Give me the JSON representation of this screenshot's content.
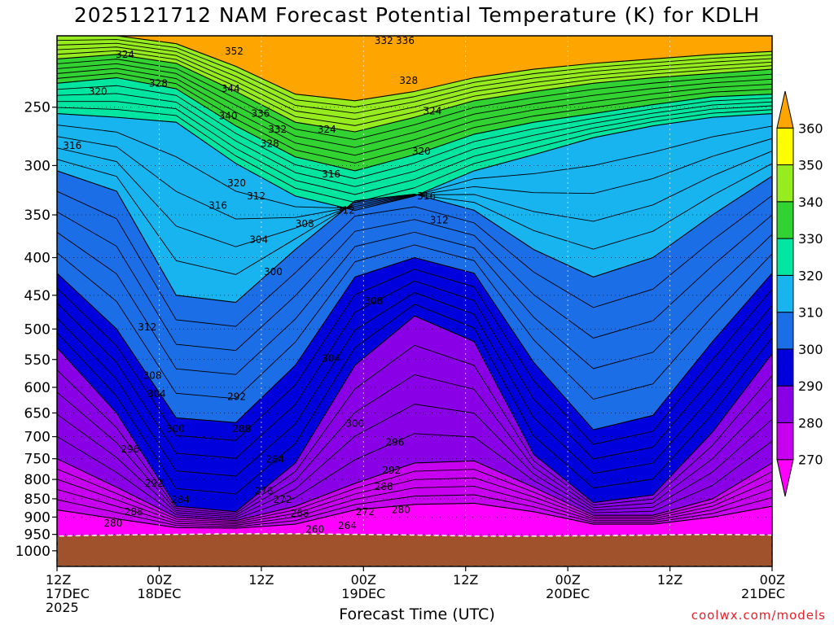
{
  "title": "2025121712 NAM Forecast Potential Temperature (K) for KDLH",
  "xlabel": "Forecast Time (UTC)",
  "credit": "coolwx.com/models",
  "chart_data": {
    "type": "contour",
    "grid": true,
    "x_axis": {
      "range_hours": [
        0,
        84
      ],
      "ticks": [
        {
          "hour": 0,
          "line1": "12Z",
          "line2": "17DEC",
          "line3": "2025"
        },
        {
          "hour": 12,
          "line1": "00Z",
          "line2": "18DEC",
          "line3": ""
        },
        {
          "hour": 24,
          "line1": "12Z",
          "line2": "",
          "line3": ""
        },
        {
          "hour": 36,
          "line1": "00Z",
          "line2": "19DEC",
          "line3": ""
        },
        {
          "hour": 48,
          "line1": "12Z",
          "line2": "",
          "line3": ""
        },
        {
          "hour": 60,
          "line1": "00Z",
          "line2": "20DEC",
          "line3": ""
        },
        {
          "hour": 72,
          "line1": "12Z",
          "line2": "",
          "line3": ""
        },
        {
          "hour": 84,
          "line1": "00Z",
          "line2": "21DEC",
          "line3": ""
        }
      ]
    },
    "y_axis": {
      "scale": "log",
      "reversed": true,
      "range_hpa": [
        200,
        1050
      ],
      "ticks": [
        250,
        300,
        350,
        400,
        450,
        500,
        550,
        600,
        650,
        700,
        750,
        800,
        850,
        900,
        950,
        1000
      ]
    },
    "colorbar": {
      "levels": [
        270,
        280,
        290,
        300,
        310,
        320,
        330,
        340,
        350,
        360
      ],
      "bands": [
        {
          "from": 260,
          "to": 270,
          "color": "#ff00ff"
        },
        {
          "from": 270,
          "to": 280,
          "color": "#c800f0"
        },
        {
          "from": 280,
          "to": 290,
          "color": "#8a00e6"
        },
        {
          "from": 290,
          "to": 300,
          "color": "#0000dc"
        },
        {
          "from": 300,
          "to": 310,
          "color": "#1c6ee6"
        },
        {
          "from": 310,
          "to": 320,
          "color": "#18b4f0"
        },
        {
          "from": 320,
          "to": 330,
          "color": "#00e6a0"
        },
        {
          "from": 330,
          "to": 340,
          "color": "#32d232"
        },
        {
          "from": 340,
          "to": 350,
          "color": "#96ec1e"
        },
        {
          "from": 350,
          "to": 360,
          "color": "#ffff00"
        },
        {
          "from": 360,
          "to": 370,
          "color": "#ffa500"
        }
      ],
      "ground_color": "#a0522d"
    },
    "surface_pressure_hpa": [
      955,
      952,
      950,
      948,
      948,
      950,
      952,
      955,
      955,
      954,
      952,
      950,
      952
    ],
    "isentropes": [
      {
        "theta": 350,
        "p": [
          200,
          200,
          205,
          220,
          240,
          245,
          238,
          228,
          222,
          218,
          215,
          212,
          210
        ]
      },
      {
        "theta": 340,
        "p": [
          215,
          212,
          218,
          238,
          262,
          270,
          258,
          245,
          238,
          232,
          228,
          225,
          222
        ]
      },
      {
        "theta": 330,
        "p": [
          232,
          228,
          236,
          265,
          292,
          305,
          290,
          272,
          262,
          255,
          248,
          242,
          240
        ]
      },
      {
        "theta": 320,
        "p": [
          255,
          258,
          262,
          298,
          330,
          345,
          330,
          305,
          290,
          275,
          265,
          258,
          255
        ]
      },
      {
        "theta": 310,
        "p": [
          305,
          325,
          450,
          460,
          390,
          335,
          328,
          345,
          390,
          425,
          400,
          350,
          310
        ]
      },
      {
        "theta": 300,
        "p": [
          420,
          500,
          660,
          670,
          560,
          425,
          400,
          420,
          555,
          685,
          655,
          520,
          420
        ]
      },
      {
        "theta": 290,
        "p": [
          530,
          650,
          870,
          885,
          760,
          560,
          480,
          520,
          740,
          860,
          840,
          690,
          540
        ]
      },
      {
        "theta": 280,
        "p": [
          750,
          820,
          900,
          910,
          870,
          810,
          760,
          755,
          820,
          895,
          895,
          850,
          760
        ]
      },
      {
        "theta": 270,
        "p": [
          880,
          905,
          930,
          932,
          920,
          880,
          865,
          862,
          885,
          920,
          920,
          900,
          870
        ]
      }
    ],
    "profile_hours": [
      0,
      7,
      14,
      21,
      28,
      35,
      42,
      49,
      56,
      63,
      70,
      77,
      84
    ],
    "contour_labels": [
      {
        "text": "324",
        "hour": 8,
        "p": 212
      },
      {
        "text": "328",
        "hour": 11.9,
        "p": 232
      },
      {
        "text": "320",
        "hour": 4.8,
        "p": 238
      },
      {
        "text": "316",
        "hour": 1.8,
        "p": 282
      },
      {
        "text": "352",
        "hour": 20.8,
        "p": 210
      },
      {
        "text": "344",
        "hour": 20.4,
        "p": 236
      },
      {
        "text": "340",
        "hour": 20.1,
        "p": 257
      },
      {
        "text": "336",
        "hour": 23.9,
        "p": 255
      },
      {
        "text": "332",
        "hour": 25.9,
        "p": 268
      },
      {
        "text": "328",
        "hour": 25.0,
        "p": 280
      },
      {
        "text": "324",
        "hour": 31.7,
        "p": 268
      },
      {
        "text": "332",
        "hour": 38.4,
        "p": 203
      },
      {
        "text": "336",
        "hour": 40.9,
        "p": 203
      },
      {
        "text": "328",
        "hour": 41.3,
        "p": 230
      },
      {
        "text": "324",
        "hour": 44.1,
        "p": 253
      },
      {
        "text": "320",
        "hour": 42.8,
        "p": 287
      },
      {
        "text": "316",
        "hour": 32.2,
        "p": 308
      },
      {
        "text": "320",
        "hour": 21.1,
        "p": 317
      },
      {
        "text": "316",
        "hour": 18.9,
        "p": 340
      },
      {
        "text": "312",
        "hour": 23.4,
        "p": 330
      },
      {
        "text": "312",
        "hour": 33.9,
        "p": 345
      },
      {
        "text": "308",
        "hour": 29.1,
        "p": 360
      },
      {
        "text": "304",
        "hour": 23.7,
        "p": 378
      },
      {
        "text": "316",
        "hour": 43.4,
        "p": 330
      },
      {
        "text": "312",
        "hour": 44.9,
        "p": 356
      },
      {
        "text": "300",
        "hour": 25.4,
        "p": 418
      },
      {
        "text": "312",
        "hour": 10.6,
        "p": 497
      },
      {
        "text": "308",
        "hour": 11.2,
        "p": 578
      },
      {
        "text": "304",
        "hour": 11.7,
        "p": 612
      },
      {
        "text": "300",
        "hour": 13.9,
        "p": 683
      },
      {
        "text": "296",
        "hour": 8.6,
        "p": 728
      },
      {
        "text": "292",
        "hour": 11.4,
        "p": 810
      },
      {
        "text": "288",
        "hour": 9.0,
        "p": 885
      },
      {
        "text": "280",
        "hour": 6.6,
        "p": 918
      },
      {
        "text": "284",
        "hour": 14.5,
        "p": 852
      },
      {
        "text": "292",
        "hour": 21.1,
        "p": 618
      },
      {
        "text": "288",
        "hour": 21.7,
        "p": 683
      },
      {
        "text": "284",
        "hour": 25.6,
        "p": 752
      },
      {
        "text": "276",
        "hour": 24.3,
        "p": 830
      },
      {
        "text": "272",
        "hour": 26.5,
        "p": 852
      },
      {
        "text": "268",
        "hour": 28.5,
        "p": 890
      },
      {
        "text": "260",
        "hour": 30.3,
        "p": 935
      },
      {
        "text": "264",
        "hour": 34.1,
        "p": 925
      },
      {
        "text": "308",
        "hour": 37.2,
        "p": 458
      },
      {
        "text": "304",
        "hour": 32.2,
        "p": 548
      },
      {
        "text": "300",
        "hour": 35.0,
        "p": 672
      },
      {
        "text": "296",
        "hour": 39.7,
        "p": 712
      },
      {
        "text": "292",
        "hour": 39.3,
        "p": 778
      },
      {
        "text": "288",
        "hour": 38.4,
        "p": 818
      },
      {
        "text": "280",
        "hour": 40.4,
        "p": 880
      },
      {
        "text": "272",
        "hour": 36.2,
        "p": 885
      }
    ]
  }
}
